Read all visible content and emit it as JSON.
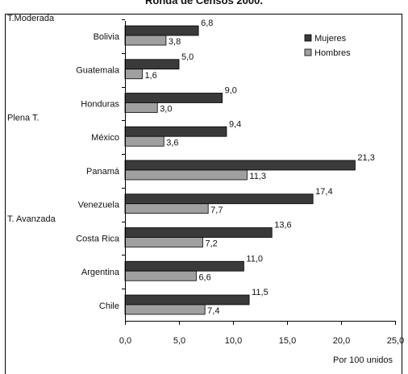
{
  "chart_data": {
    "type": "bar",
    "orientation": "horizontal",
    "title": "Ronda de Censos 2000.",
    "categories": [
      "Bolivia",
      "Guatemala",
      "Honduras",
      "México",
      "Panamá",
      "Venezuela",
      "Costa Rica",
      "Argentina",
      "Chile"
    ],
    "series": [
      {
        "name": "Mujeres",
        "color": "#3a3a3a",
        "values": [
          6.8,
          5.0,
          9.0,
          9.4,
          21.3,
          17.4,
          13.6,
          11.0,
          11.5
        ],
        "labels": [
          "6,8",
          "5,0",
          "9,0",
          "9,4",
          "21,3",
          "17,4",
          "13,6",
          "11,0",
          "11,5"
        ]
      },
      {
        "name": "Hombres",
        "color": "#a0a0a0",
        "values": [
          3.8,
          1.6,
          3.0,
          3.6,
          11.3,
          7.7,
          7.2,
          6.6,
          7.4
        ],
        "labels": [
          "3,8",
          "1,6",
          "3,0",
          "3,6",
          "11,3",
          "7,7",
          "7,2",
          "6,6",
          "7,4"
        ]
      }
    ],
    "xlim": [
      0,
      25
    ],
    "xticks": [
      0,
      5,
      10,
      15,
      20,
      25
    ],
    "xtick_labels": [
      "0,0",
      "5,0",
      "10,0",
      "15,0",
      "20,0",
      "25,0"
    ],
    "xlabel": "Por 100 unidos",
    "group_labels": [
      {
        "text": "T.Moderada",
        "row": 0
      },
      {
        "text": "Plena T.",
        "row": 2
      },
      {
        "text": "T. Avanzada",
        "row": 5
      }
    ],
    "legend_position": "top-right",
    "grid": false
  }
}
